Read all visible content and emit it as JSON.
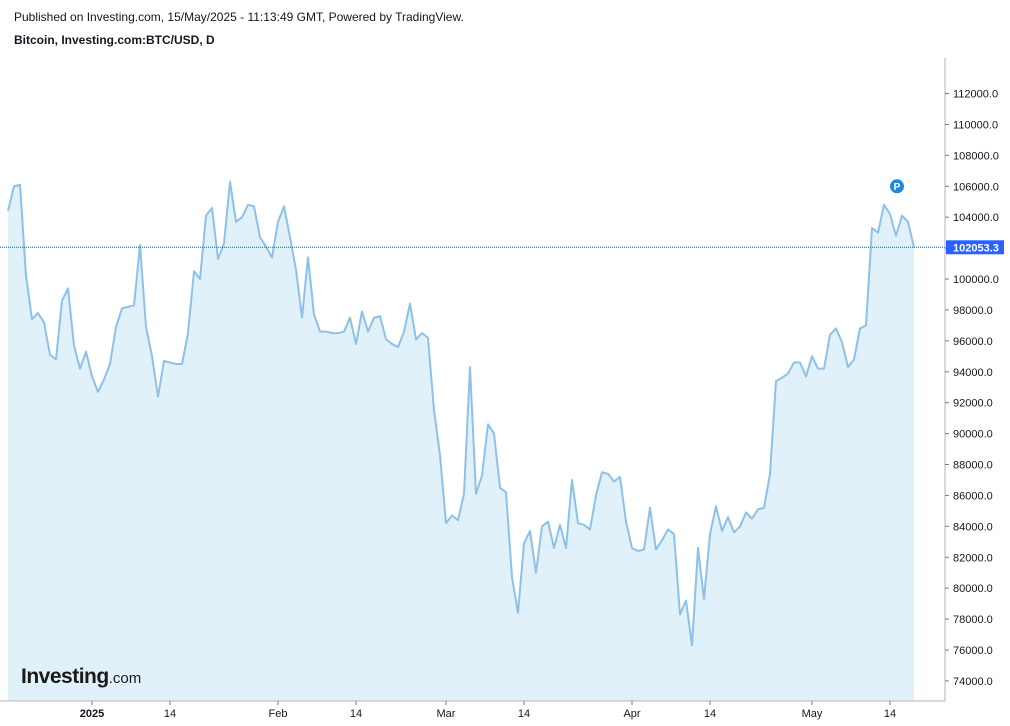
{
  "header": {
    "published": "Published on Investing.com, 15/May/2025 - 11:13:49 GMT, Powered by TradingView.",
    "title": "Bitcoin, Investing.com:BTC/USD, D"
  },
  "logo": {
    "main": "Investing",
    "suffix": ".com",
    "mark_text": "P"
  },
  "colors": {
    "line": "#8ec1ea",
    "fill": "#e1f1fa",
    "price_label": "#2962ff",
    "marker": "#1e88e5"
  },
  "chart_data": {
    "type": "area",
    "ylim": [
      72700,
      114300
    ],
    "y_ticks": [
      74000,
      76000,
      78000,
      80000,
      82000,
      84000,
      86000,
      88000,
      90000,
      92000,
      94000,
      96000,
      98000,
      100000,
      102000,
      104000,
      106000,
      108000,
      110000,
      112000
    ],
    "y_tick_labels": [
      "74000.0",
      "76000.0",
      "78000.0",
      "80000.0",
      "82000.0",
      "84000.0",
      "86000.0",
      "88000.0",
      "90000.0",
      "92000.0",
      "94000.0",
      "96000.0",
      "98000.0",
      "100000.0",
      "102000.0",
      "104000.0",
      "106000.0",
      "108000.0",
      "110000.0",
      "112000.0"
    ],
    "x_ticks": [
      {
        "label": "2025",
        "index": 14,
        "bold": true
      },
      {
        "label": "14",
        "index": 27,
        "bold": false
      },
      {
        "label": "Feb",
        "index": 45,
        "bold": false
      },
      {
        "label": "14",
        "index": 58,
        "bold": false
      },
      {
        "label": "Mar",
        "index": 73,
        "bold": false
      },
      {
        "label": "14",
        "index": 86,
        "bold": false
      },
      {
        "label": "Apr",
        "index": 104,
        "bold": false
      },
      {
        "label": "14",
        "index": 117,
        "bold": false
      },
      {
        "label": "May",
        "index": 134,
        "bold": false
      },
      {
        "label": "14",
        "index": 147,
        "bold": false
      }
    ],
    "last_price": 102053.3,
    "last_price_label": "102053.3",
    "series": [
      {
        "values": [
          104400,
          106000,
          106100,
          100200,
          97400,
          97800,
          97200,
          95100,
          94800,
          98600,
          99400,
          95700,
          94200,
          95300,
          93700,
          92700,
          93500,
          94500,
          96900,
          98100,
          98200,
          98300,
          102200,
          96900,
          95000,
          92400,
          94700,
          94600,
          94500,
          94500,
          96500,
          100500,
          100000,
          104100,
          104600,
          101300,
          102300,
          106300,
          103700,
          104000,
          104800,
          104700,
          102700,
          102100,
          101400,
          103700,
          104700,
          102700,
          100600,
          97500,
          101400,
          97700,
          96600,
          96600,
          96500,
          96500,
          96600,
          97500,
          95800,
          97900,
          96600,
          97500,
          97600,
          96100,
          95800,
          95600,
          96600,
          98400,
          96100,
          96500,
          96200,
          91500,
          88600,
          84200,
          84700,
          84400,
          86100,
          94300,
          86100,
          87300,
          90600,
          90000,
          86500,
          86200,
          80700,
          78400,
          82900,
          83700,
          81000,
          84000,
          84300,
          82600,
          84100,
          82600,
          87000,
          84200,
          84100,
          83800,
          86000,
          87500,
          87400,
          86900,
          87200,
          84300,
          82600,
          82400,
          82500,
          85200,
          82500,
          83100,
          83800,
          83500,
          78300,
          79200,
          76300,
          82600,
          79300,
          83500,
          85300,
          83700,
          84600,
          83600,
          84000,
          84900,
          84500,
          85100,
          85200,
          87400,
          93400,
          93600,
          93900,
          94600,
          94600,
          93700,
          95000,
          94200,
          94200,
          96400,
          96800,
          95900,
          94300,
          94800,
          96800,
          97000,
          103300,
          103000,
          104800,
          104200,
          102800,
          104100,
          103700,
          102053
        ]
      }
    ]
  }
}
